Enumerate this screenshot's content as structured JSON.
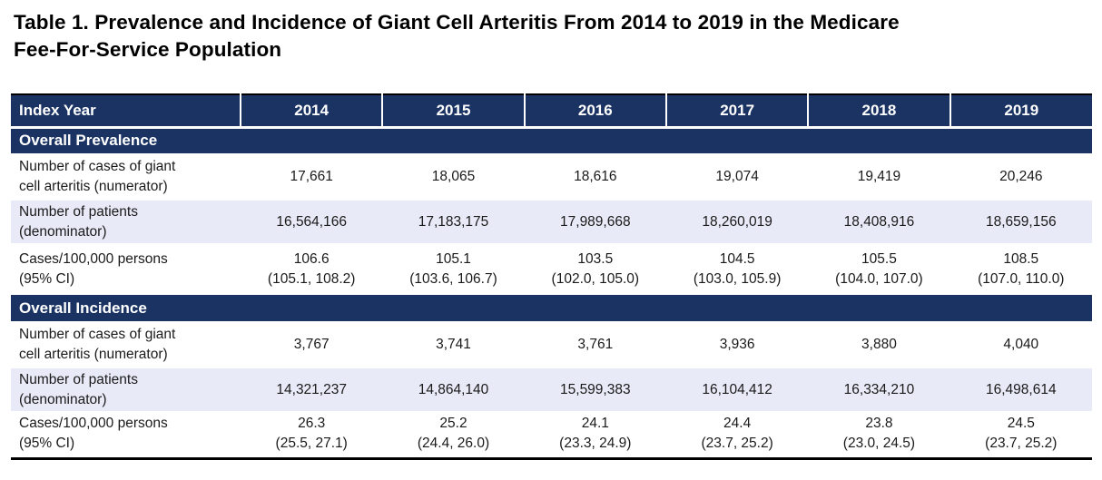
{
  "colors": {
    "header_navy": "#1A3363",
    "alt_row_blue": "#E8EBF7",
    "border_black": "#000000",
    "header_text": "#ffffff",
    "body_text": "#1a1a1a"
  },
  "chart_data": {
    "type": "table",
    "title": "Table 1. Prevalence and Incidence of Giant Cell Arteritis From 2014 to 2019 in the Medicare\nFee-For-Service Population",
    "columns": [
      "Index Year",
      "2014",
      "2015",
      "2016",
      "2017",
      "2018",
      "2019"
    ],
    "sections": [
      {
        "title": "Overall Prevalence",
        "rows": [
          {
            "label": "Number of cases of giant\ncell arteritis (numerator)",
            "values": [
              "17,661",
              "18,065",
              "18,616",
              "19,074",
              "19,419",
              "20,246"
            ]
          },
          {
            "label": "Number of patients\n(denominator)",
            "values": [
              "16,564,166",
              "17,183,175",
              "17,989,668",
              "18,260,019",
              "18,408,916",
              "18,659,156"
            ]
          },
          {
            "label": "Cases/100,000 persons\n(95% CI)",
            "values": [
              "106.6\n(105.1, 108.2)",
              "105.1\n(103.6, 106.7)",
              "103.5\n(102.0, 105.0)",
              "104.5\n(103.0, 105.9)",
              "105.5\n(104.0, 107.0)",
              "108.5\n(107.0, 110.0)"
            ]
          }
        ]
      },
      {
        "title": "Overall Incidence",
        "rows": [
          {
            "label": "Number of cases of giant\ncell arteritis (numerator)",
            "values": [
              "3,767",
              "3,741",
              "3,761",
              "3,936",
              "3,880",
              "4,040"
            ]
          },
          {
            "label": "Number of patients\n(denominator)",
            "values": [
              "14,321,237",
              "14,864,140",
              "15,599,383",
              "16,104,412",
              "16,334,210",
              "16,498,614"
            ]
          },
          {
            "label": "Cases/100,000 persons\n(95% CI)",
            "values": [
              "26.3\n(25.5, 27.1)",
              "25.2\n(24.4, 26.0)",
              "24.1\n(23.3, 24.9)",
              "24.4\n(23.7, 25.2)",
              "23.8\n(23.0, 24.5)",
              "24.5\n(23.7, 25.2)"
            ]
          }
        ]
      }
    ]
  }
}
